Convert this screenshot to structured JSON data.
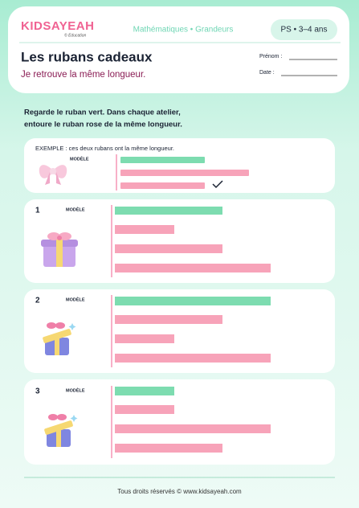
{
  "header": {
    "logo": "KIDSAYEAH",
    "logo_tagline": "© Education",
    "subject": "Mathématiques • Grandeurs",
    "level": "PS • 3–4 ans",
    "title": "Les rubans cadeaux",
    "subtitle": "Je retrouve la même longueur.",
    "name_label": "Prénom :",
    "date_label": "Date :"
  },
  "instructions": [
    "Regarde le ruban vert. Dans chaque atelier,",
    "entoure le ruban rose de la même longueur."
  ],
  "example": {
    "caption": "EXEMPLE : ces deux rubans ont la même longueur.",
    "model_label": "MODÈLE"
  },
  "activities": [
    {
      "number": "1",
      "model_label": "MODÈLE"
    },
    {
      "number": "2",
      "model_label": "MODÈLE"
    },
    {
      "number": "3",
      "model_label": "MODÈLE"
    }
  ],
  "footer": "Tous droits réservés © www.kidsayeah.com"
}
